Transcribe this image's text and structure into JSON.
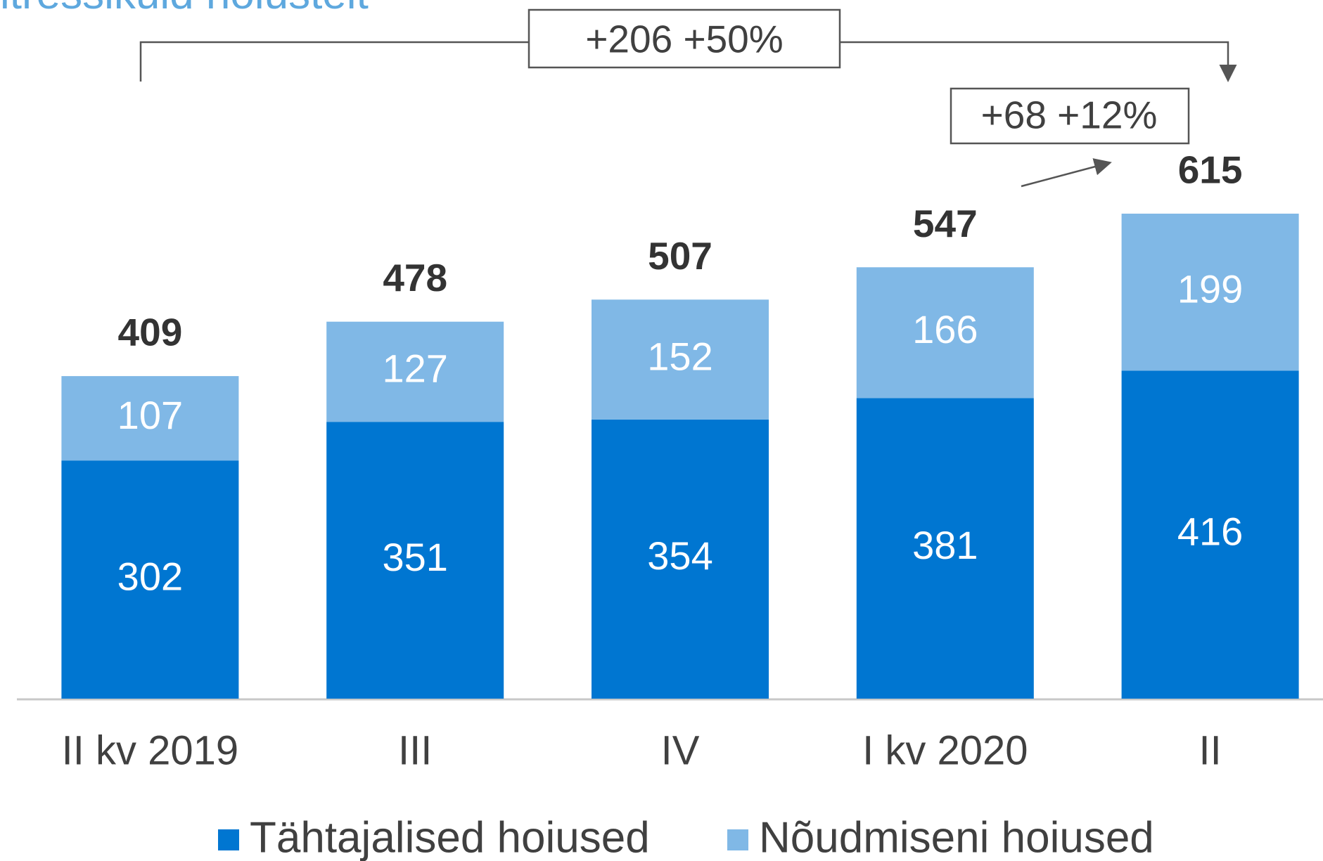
{
  "chart_data": {
    "type": "stacked_bar",
    "title": "itressikuid hoiustelt",
    "categories": [
      "II kv 2019",
      "III",
      "IV",
      "I kv 2020",
      "II"
    ],
    "series": [
      {
        "name": "Tähtajalised hoiused",
        "color": "#0076d1",
        "values": [
          302,
          351,
          354,
          381,
          416
        ]
      },
      {
        "name": "Nõudmiseni hoiused",
        "color": "#80b8e6",
        "values": [
          107,
          127,
          152,
          166,
          199
        ]
      }
    ],
    "totals": [
      409,
      478,
      507,
      547,
      615
    ],
    "annotations": [
      "+206 +50%",
      "+68 +12%"
    ],
    "legend": "bottom"
  }
}
